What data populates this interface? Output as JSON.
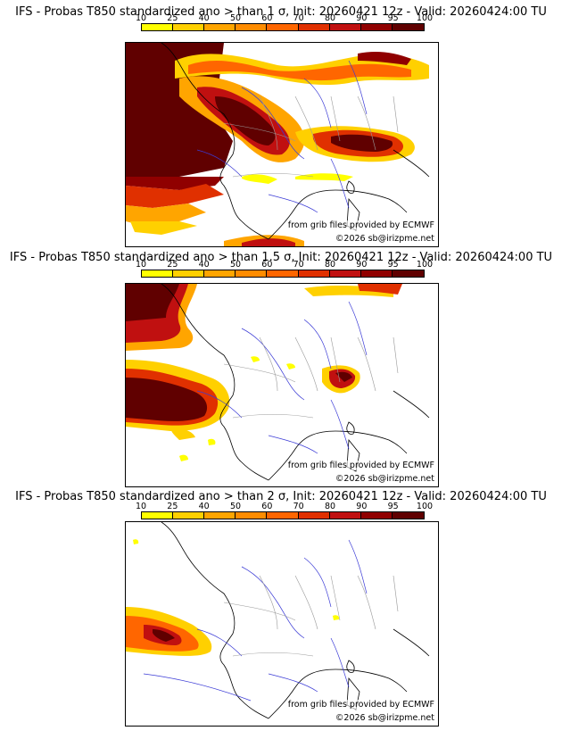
{
  "colorbar": {
    "ticks": [
      "10",
      "25",
      "40",
      "50",
      "60",
      "70",
      "80",
      "90",
      "95",
      "100"
    ],
    "colors": [
      "#ffff00",
      "#ffd000",
      "#ffa500",
      "#ff8c00",
      "#ff6600",
      "#e03000",
      "#c01010",
      "#900000",
      "#600000"
    ]
  },
  "panels": [
    {
      "title": "IFS - Probas T850  standardized ano > than 1 σ, Init: 20260421 12z - Valid: 20260424:00 TU",
      "threshold_sigma": 1,
      "credit_source": "from grib files provided by ECMWF",
      "credit_copyright": "©2026 sb@irizpme.net"
    },
    {
      "title": "IFS - Probas T850  standardized ano > than 1.5 σ, Init: 20260421 12z - Valid: 20260424:00 TU",
      "threshold_sigma": 1.5,
      "credit_source": "from grib files provided by ECMWF",
      "credit_copyright": "©2026 sb@irizpme.net"
    },
    {
      "title": "IFS - Probas T850  standardized ano > than 2 σ, Init: 20260421 12z - Valid: 20260424:00 TU",
      "threshold_sigma": 2,
      "credit_source": "from grib files provided by ECMWF",
      "credit_copyright": "©2026 sb@irizpme.net"
    }
  ]
}
